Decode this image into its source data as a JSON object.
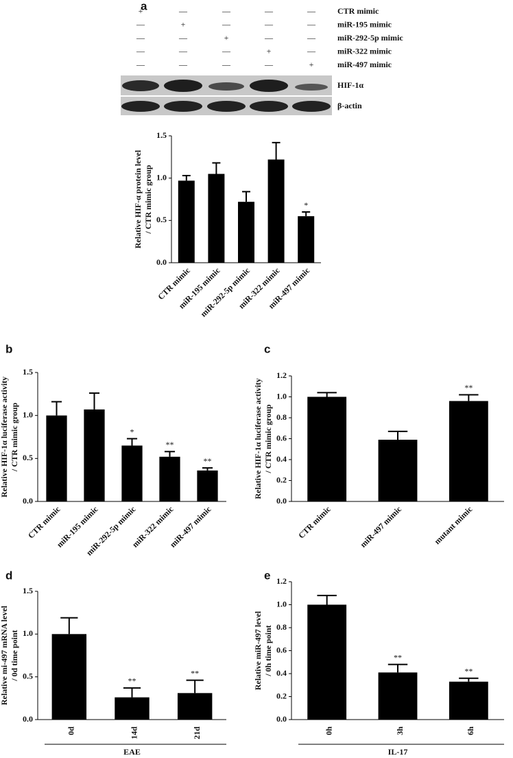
{
  "chart_data": [
    {
      "type": "bar",
      "panel": "a",
      "treatment_table": {
        "rows": [
          {
            "label": "CTR mimic",
            "signs": [
              "+",
              "—",
              "—",
              "—",
              "—"
            ]
          },
          {
            "label": "miR-195 mimic",
            "signs": [
              "—",
              "+",
              "—",
              "—",
              "—"
            ]
          },
          {
            "label": "miR-292-5p mimic",
            "signs": [
              "—",
              "—",
              "+",
              "—",
              "—"
            ]
          },
          {
            "label": "miR-322 mimic",
            "signs": [
              "—",
              "—",
              "—",
              "+",
              "—"
            ]
          },
          {
            "label": "miR-497 mimic",
            "signs": [
              "—",
              "—",
              "—",
              "—",
              "+"
            ]
          }
        ]
      },
      "blot_labels": [
        "HIF-1α",
        "β-actin"
      ],
      "ylabel": [
        "Relative HIF-α  protein level",
        "/ CTR mimic group"
      ],
      "categories": [
        "CTR mimic",
        "miR-195 mimic",
        "miR-292-5p mimic",
        "miR-322 mimic",
        "miR-497 mimic"
      ],
      "values": [
        0.97,
        1.05,
        0.72,
        1.22,
        0.55
      ],
      "errors": [
        0.06,
        0.13,
        0.12,
        0.2,
        0.05
      ],
      "significance": [
        null,
        null,
        null,
        null,
        "*"
      ],
      "color": "#000000",
      "label_rotation": -45,
      "ylim": [
        0,
        1.5
      ],
      "yticks": [
        {
          "value": 0,
          "label": "0.0"
        },
        {
          "value": 0.5,
          "label": "0.5"
        },
        {
          "value": 1,
          "label": "1.0"
        },
        {
          "value": 1.5,
          "label": "1.5"
        }
      ]
    },
    {
      "type": "bar",
      "panel": "b",
      "ylabel": [
        "Relative HIF-1α luciferase activity",
        "/ CTR mimic group"
      ],
      "categories": [
        "CTR mimic",
        "miR-195 mimic",
        "miR-292-5p mimic",
        "miR-322 mimic",
        "miR-497 mimic"
      ],
      "values": [
        1.0,
        1.07,
        0.65,
        0.52,
        0.36
      ],
      "errors": [
        0.16,
        0.19,
        0.08,
        0.06,
        0.03
      ],
      "significance": [
        null,
        null,
        "*",
        "**",
        "**"
      ],
      "color": "#000000",
      "label_rotation": -45,
      "ylim": [
        0,
        1.5
      ],
      "yticks": [
        {
          "value": 0,
          "label": "0.0"
        },
        {
          "value": 0.5,
          "label": "0.5"
        },
        {
          "value": 1,
          "label": "1.0"
        },
        {
          "value": 1.5,
          "label": "1.5"
        }
      ]
    },
    {
      "type": "bar",
      "panel": "c",
      "ylabel": [
        "Relative HIF-1α luciferase activity",
        "/ CTR mimic group"
      ],
      "categories": [
        "CTR mimic",
        "miR-497 mimic",
        "mutant mimic"
      ],
      "values": [
        1.0,
        0.59,
        0.96
      ],
      "errors": [
        0.04,
        0.08,
        0.06
      ],
      "significance": [
        null,
        null,
        "**"
      ],
      "color": "#000000",
      "label_rotation": -45,
      "ylim": [
        0,
        1.2
      ],
      "yticks": [
        {
          "value": 0,
          "label": "0.0"
        },
        {
          "value": 0.2,
          "label": "0.2"
        },
        {
          "value": 0.4,
          "label": "0.4"
        },
        {
          "value": 0.6,
          "label": "0.6"
        },
        {
          "value": 0.8,
          "label": "0.8"
        },
        {
          "value": 1,
          "label": "1.0"
        },
        {
          "value": 1.2,
          "label": "1.2"
        }
      ]
    },
    {
      "type": "bar",
      "panel": "d",
      "ylabel": [
        "Relative mi-497 mRNA level",
        "/ 0d time point"
      ],
      "categories": [
        "0d",
        "14d",
        "21d"
      ],
      "values": [
        1.0,
        0.26,
        0.31
      ],
      "errors": [
        0.19,
        0.11,
        0.15
      ],
      "significance": [
        null,
        "**",
        "**"
      ],
      "group_label": "EAE",
      "color": "#000000",
      "label_rotation": -90,
      "ylim": [
        0,
        1.5
      ],
      "yticks": [
        {
          "value": 0,
          "label": "0.0"
        },
        {
          "value": 0.5,
          "label": "0.5"
        },
        {
          "value": 1,
          "label": "1.0"
        },
        {
          "value": 1.5,
          "label": "1.5"
        }
      ]
    },
    {
      "type": "bar",
      "panel": "e",
      "ylabel": [
        "Relative miR-497 level",
        "/ 0h time point"
      ],
      "categories": [
        "0h",
        "3h",
        "6h"
      ],
      "values": [
        1.0,
        0.41,
        0.33
      ],
      "errors": [
        0.08,
        0.07,
        0.03
      ],
      "significance": [
        null,
        "**",
        "**"
      ],
      "group_label": "IL-17",
      "color": "#000000",
      "label_rotation": -90,
      "ylim": [
        0,
        1.2
      ],
      "yticks": [
        {
          "value": 0,
          "label": "0.0"
        },
        {
          "value": 0.2,
          "label": "0.2"
        },
        {
          "value": 0.4,
          "label": "0.4"
        },
        {
          "value": 0.6,
          "label": "0.6"
        },
        {
          "value": 0.8,
          "label": "0.8"
        },
        {
          "value": 1,
          "label": "1.0"
        },
        {
          "value": 1.2,
          "label": "1.2"
        }
      ]
    }
  ]
}
